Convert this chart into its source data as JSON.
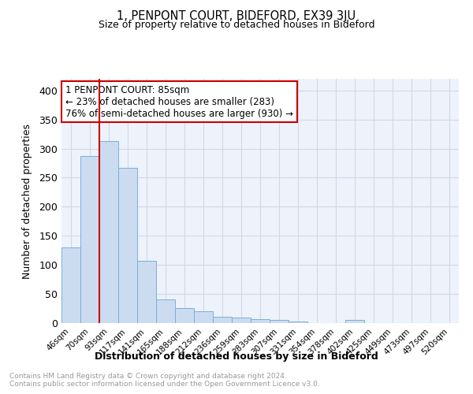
{
  "title": "1, PENPONT COURT, BIDEFORD, EX39 3JU",
  "subtitle": "Size of property relative to detached houses in Bideford",
  "xlabel": "Distribution of detached houses by size in Bideford",
  "ylabel": "Number of detached properties",
  "footer_line1": "Contains HM Land Registry data © Crown copyright and database right 2024.",
  "footer_line2": "Contains public sector information licensed under the Open Government Licence v3.0.",
  "categories": [
    "46sqm",
    "70sqm",
    "93sqm",
    "117sqm",
    "141sqm",
    "165sqm",
    "188sqm",
    "212sqm",
    "236sqm",
    "259sqm",
    "283sqm",
    "307sqm",
    "331sqm",
    "354sqm",
    "378sqm",
    "402sqm",
    "425sqm",
    "449sqm",
    "473sqm",
    "497sqm",
    "520sqm"
  ],
  "values": [
    130,
    287,
    313,
    267,
    107,
    41,
    26,
    21,
    11,
    9,
    7,
    6,
    3,
    0,
    0,
    5,
    0,
    0,
    0,
    0,
    0
  ],
  "bar_color": "#ccdcf0",
  "bar_edge_color": "#7aaed6",
  "property_label": "1 PENPONT COURT: 85sqm",
  "annotation_line1": "← 23% of detached houses are smaller (283)",
  "annotation_line2": "76% of semi-detached houses are larger (930) →",
  "vline_color": "#cc0000",
  "vline_x": 2.0,
  "background_color": "#eef2fb",
  "grid_color": "#d0d8e8",
  "ylim": [
    0,
    420
  ],
  "yticks": [
    0,
    50,
    100,
    150,
    200,
    250,
    300,
    350,
    400
  ]
}
